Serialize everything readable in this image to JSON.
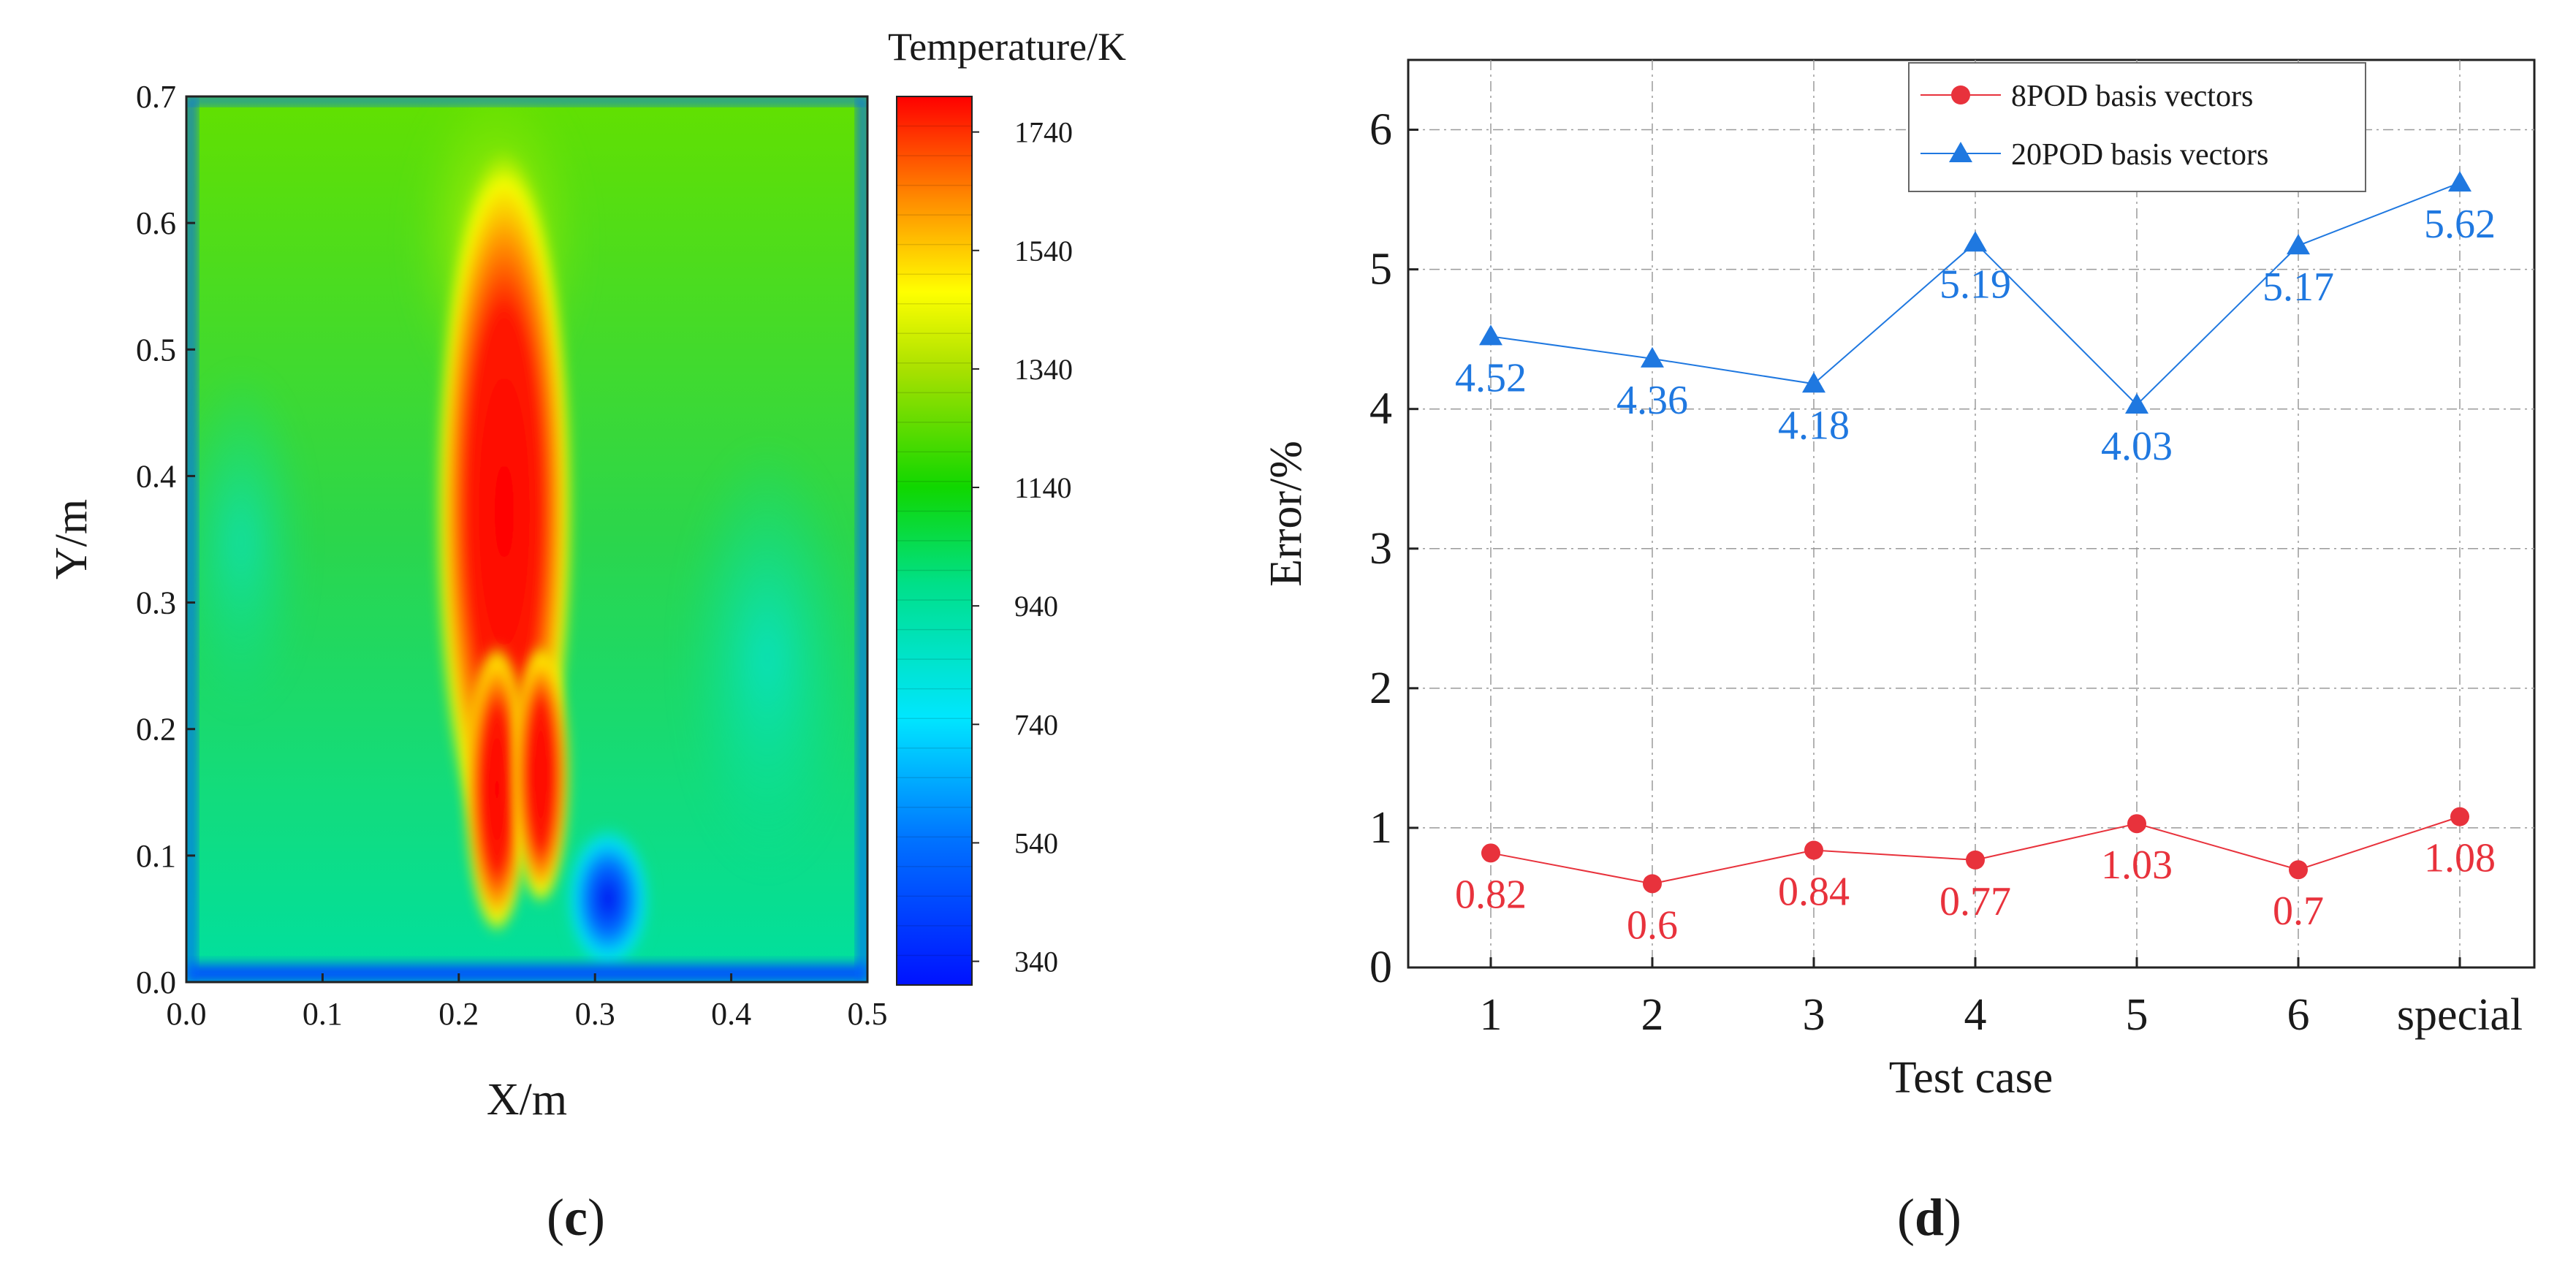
{
  "panels": {
    "c_label_open": "(",
    "c_label_letter": "c",
    "c_label_close": ")",
    "d_label_open": "(",
    "d_label_letter": "d",
    "d_label_close": ")"
  },
  "chart_data": [
    {
      "type": "heatmap",
      "xlabel": "X/m",
      "ylabel": "Y/m",
      "xlim": [
        0.0,
        0.5
      ],
      "ylim": [
        0.0,
        0.7
      ],
      "x_ticks": [
        "0.0",
        "0.1",
        "0.2",
        "0.3",
        "0.4",
        "0.5"
      ],
      "y_ticks": [
        "0.0",
        "0.1",
        "0.2",
        "0.3",
        "0.4",
        "0.5",
        "0.6",
        "0.7"
      ],
      "colorbar": {
        "title": "Temperature/K",
        "range": [
          300,
          1800
        ],
        "ticks": [
          "340",
          "540",
          "740",
          "940",
          "1140",
          "1340",
          "1540",
          "1740"
        ],
        "tick_values": [
          340,
          540,
          740,
          940,
          1140,
          1340,
          1540,
          1740
        ]
      },
      "features": {
        "background_K": 1050,
        "walls_K": 450,
        "flame": {
          "x": 0.24,
          "y": 0.33,
          "peak_K": 1740
        },
        "cold_spot": {
          "x": 0.315,
          "y": 0.07,
          "min_K": 340
        }
      }
    },
    {
      "type": "line",
      "xlabel": "Test case",
      "ylabel": "Error/%",
      "categories": [
        "1",
        "2",
        "3",
        "4",
        "5",
        "6",
        "special"
      ],
      "ylim": [
        0,
        6.5
      ],
      "y_ticks": [
        "0",
        "1",
        "2",
        "3",
        "4",
        "5",
        "6"
      ],
      "grid": true,
      "legend_position": "top-right",
      "series": [
        {
          "name": "8POD basis vectors",
          "values": [
            0.82,
            0.6,
            0.84,
            0.77,
            1.03,
            0.7,
            1.08
          ],
          "labels": [
            "0.82",
            "0.6",
            "0.84",
            "0.77",
            "1.03",
            "0.7",
            "1.08"
          ],
          "color": "#e8323c",
          "marker": "circle"
        },
        {
          "name": "20POD basis vectors",
          "values": [
            4.52,
            4.36,
            4.18,
            5.19,
            4.03,
            5.17,
            5.62
          ],
          "labels": [
            "4.52",
            "4.36",
            "4.18",
            "5.19",
            "4.03",
            "5.17",
            "5.62"
          ],
          "color": "#1f78e0",
          "marker": "triangle"
        }
      ]
    }
  ]
}
